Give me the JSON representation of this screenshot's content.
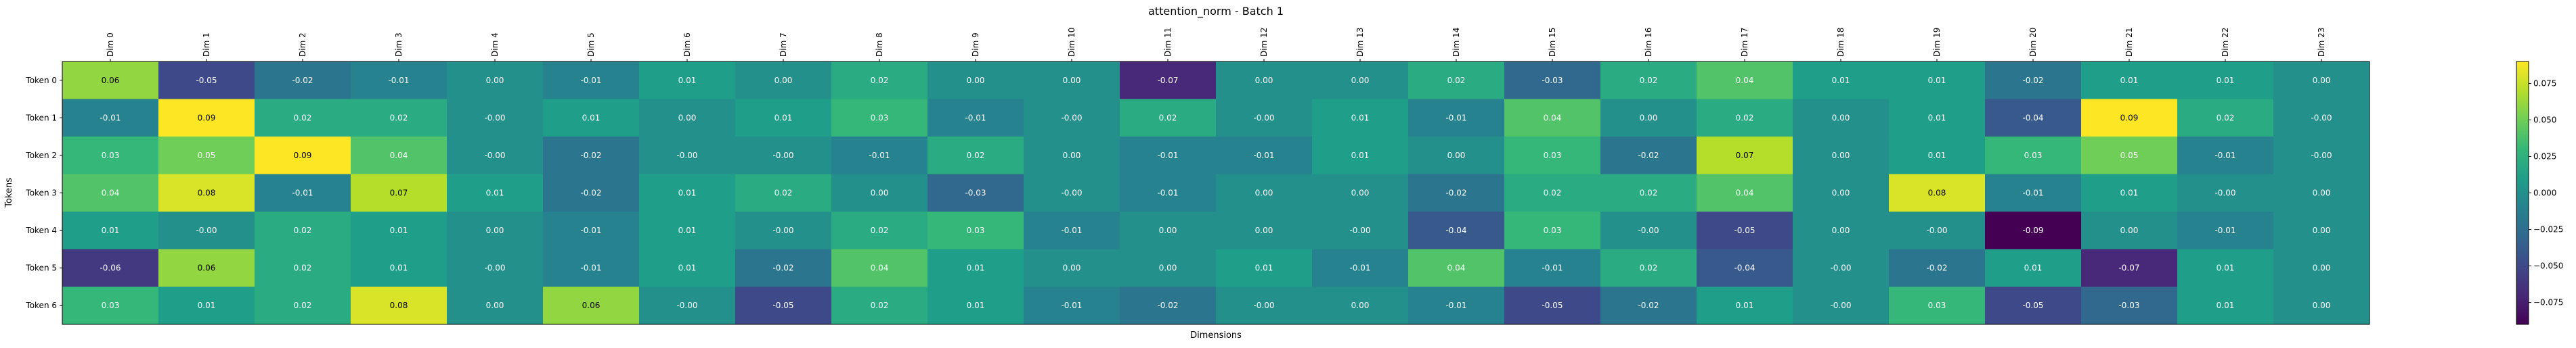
{
  "chart_data": {
    "type": "heatmap",
    "title": "attention_norm - Batch 1",
    "xlabel": "Dimensions",
    "ylabel": "Tokens",
    "x_categories": [
      "Dim 0",
      "Dim 1",
      "Dim 2",
      "Dim 3",
      "Dim 4",
      "Dim 5",
      "Dim 6",
      "Dim 7",
      "Dim 8",
      "Dim 9",
      "Dim 10",
      "Dim 11",
      "Dim 12",
      "Dim 13",
      "Dim 14",
      "Dim 15",
      "Dim 16",
      "Dim 17",
      "Dim 18",
      "Dim 19",
      "Dim 20",
      "Dim 21",
      "Dim 22",
      "Dim 23"
    ],
    "y_categories": [
      "Token 0",
      "Token 1",
      "Token 2",
      "Token 3",
      "Token 4",
      "Token 5",
      "Token 6"
    ],
    "values": [
      [
        0.06,
        -0.05,
        -0.02,
        -0.01,
        0.0,
        -0.01,
        0.01,
        0.0,
        0.02,
        0.0,
        0.0,
        -0.07,
        0.0,
        0.0,
        0.02,
        -0.03,
        0.02,
        0.04,
        0.01,
        0.01,
        -0.02,
        0.01,
        0.01,
        0.0
      ],
      [
        -0.01,
        0.09,
        0.02,
        0.02,
        -0.0,
        0.01,
        0.0,
        0.01,
        0.03,
        -0.01,
        -0.0,
        0.02,
        -0.0,
        0.01,
        -0.01,
        0.04,
        0.0,
        0.02,
        0.0,
        0.01,
        -0.04,
        0.09,
        0.02,
        -0.0
      ],
      [
        0.03,
        0.05,
        0.09,
        0.04,
        -0.0,
        -0.02,
        -0.0,
        -0.0,
        -0.01,
        0.02,
        0.0,
        -0.01,
        -0.01,
        0.01,
        0.0,
        0.03,
        -0.02,
        0.07,
        0.0,
        0.01,
        0.03,
        0.05,
        -0.01,
        -0.0
      ],
      [
        0.04,
        0.08,
        -0.01,
        0.07,
        0.01,
        -0.02,
        0.01,
        0.02,
        0.0,
        -0.03,
        -0.0,
        -0.01,
        0.0,
        0.0,
        -0.02,
        0.02,
        0.02,
        0.04,
        0.0,
        0.08,
        -0.01,
        0.01,
        -0.0,
        0.0
      ],
      [
        0.01,
        -0.0,
        0.02,
        0.01,
        0.0,
        -0.01,
        0.01,
        -0.0,
        0.02,
        0.03,
        -0.01,
        0.0,
        0.0,
        -0.0,
        -0.04,
        0.03,
        -0.0,
        -0.05,
        0.0,
        -0.0,
        -0.09,
        0.0,
        -0.01,
        0.0
      ],
      [
        -0.06,
        0.06,
        0.02,
        0.01,
        -0.0,
        -0.01,
        0.01,
        -0.02,
        0.04,
        0.01,
        0.0,
        0.0,
        0.01,
        -0.01,
        0.04,
        -0.01,
        0.02,
        -0.04,
        -0.0,
        -0.02,
        0.01,
        -0.07,
        0.01,
        0.0
      ],
      [
        0.03,
        0.01,
        0.02,
        0.08,
        0.0,
        0.06,
        -0.0,
        -0.05,
        0.02,
        0.01,
        -0.01,
        -0.02,
        -0.0,
        0.0,
        -0.01,
        -0.05,
        -0.02,
        0.01,
        -0.0,
        0.03,
        -0.05,
        -0.03,
        0.01,
        0.0
      ]
    ],
    "value_labels": [
      [
        "0.06",
        "-0.05",
        "-0.02",
        "-0.01",
        "0.00",
        "-0.01",
        "0.01",
        "0.00",
        "0.02",
        "0.00",
        "0.00",
        "-0.07",
        "0.00",
        "0.00",
        "0.02",
        "-0.03",
        "0.02",
        "0.04",
        "0.01",
        "0.01",
        "-0.02",
        "0.01",
        "0.01",
        "0.00"
      ],
      [
        "-0.01",
        "0.09",
        "0.02",
        "0.02",
        "-0.00",
        "0.01",
        "0.00",
        "0.01",
        "0.03",
        "-0.01",
        "-0.00",
        "0.02",
        "-0.00",
        "0.01",
        "-0.01",
        "0.04",
        "0.00",
        "0.02",
        "0.00",
        "0.01",
        "-0.04",
        "0.09",
        "0.02",
        "-0.00"
      ],
      [
        "0.03",
        "0.05",
        "0.09",
        "0.04",
        "-0.00",
        "-0.02",
        "-0.00",
        "-0.00",
        "-0.01",
        "0.02",
        "0.00",
        "-0.01",
        "-0.01",
        "0.01",
        "0.00",
        "0.03",
        "-0.02",
        "0.07",
        "0.00",
        "0.01",
        "0.03",
        "0.05",
        "-0.01",
        "-0.00"
      ],
      [
        "0.04",
        "0.08",
        "-0.01",
        "0.07",
        "0.01",
        "-0.02",
        "0.01",
        "0.02",
        "0.00",
        "-0.03",
        "-0.00",
        "-0.01",
        "0.00",
        "0.00",
        "-0.02",
        "0.02",
        "0.02",
        "0.04",
        "0.00",
        "0.08",
        "-0.01",
        "0.01",
        "-0.00",
        "0.00"
      ],
      [
        "0.01",
        "-0.00",
        "0.02",
        "0.01",
        "0.00",
        "-0.01",
        "0.01",
        "-0.00",
        "0.02",
        "0.03",
        "-0.01",
        "0.00",
        "0.00",
        "-0.00",
        "-0.04",
        "0.03",
        "-0.00",
        "-0.05",
        "0.00",
        "-0.00",
        "-0.09",
        "0.00",
        "-0.01",
        "0.00"
      ],
      [
        "-0.06",
        "0.06",
        "0.02",
        "0.01",
        "-0.00",
        "-0.01",
        "0.01",
        "-0.02",
        "0.04",
        "0.01",
        "0.00",
        "0.00",
        "0.01",
        "-0.01",
        "0.04",
        "-0.01",
        "0.02",
        "-0.04",
        "-0.00",
        "-0.02",
        "0.01",
        "-0.07",
        "0.01",
        "0.00"
      ],
      [
        "0.03",
        "0.01",
        "0.02",
        "0.08",
        "0.00",
        "0.06",
        "-0.00",
        "-0.05",
        "0.02",
        "0.01",
        "-0.01",
        "-0.02",
        "-0.00",
        "0.00",
        "-0.01",
        "-0.05",
        "-0.02",
        "0.01",
        "-0.00",
        "0.03",
        "-0.05",
        "-0.03",
        "0.01",
        "0.00"
      ]
    ],
    "colormap": "viridis",
    "colormap_colors": [
      "#440154",
      "#482878",
      "#3e4989",
      "#31688e",
      "#26828e",
      "#1f9e89",
      "#35b779",
      "#6ece58",
      "#b5de2b",
      "#fde725"
    ],
    "vmin": -0.09,
    "vmax": 0.09,
    "colorbar": {
      "ticks": [
        -0.075,
        -0.05,
        -0.025,
        0.0,
        0.025,
        0.05,
        0.075
      ],
      "tick_labels": [
        "−0.075",
        "−0.050",
        "−0.025",
        "0.000",
        "0.025",
        "0.050",
        "0.075"
      ]
    },
    "x_ticks_position": "top",
    "grid": false,
    "legend": "colorbar-right"
  }
}
